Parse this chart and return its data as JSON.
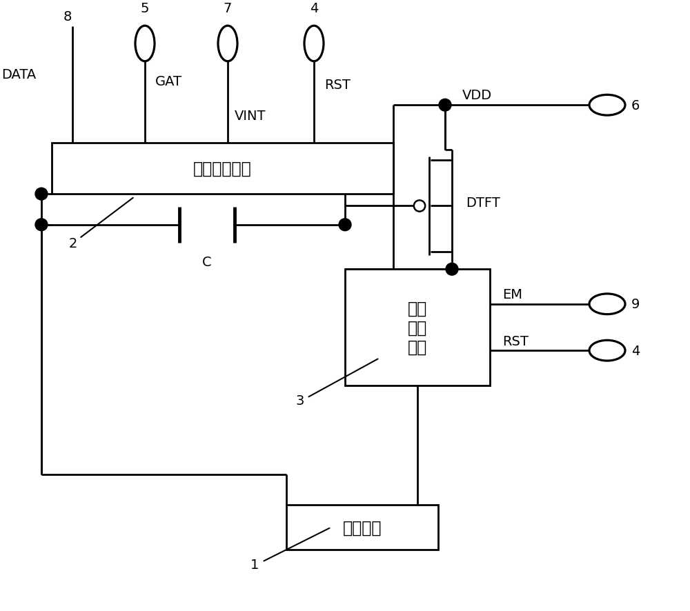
{
  "bg": "#ffffff",
  "lw": 2.0,
  "b1_label": "第一控制模块",
  "b2_label": "第二\n控制\n模块",
  "b3_label": "发光元件",
  "labels": {
    "DATA": "DATA",
    "GAT": "GAT",
    "VINT": "VINT",
    "RST": "RST",
    "VDD": "VDD",
    "EM": "EM",
    "DTFT": "DTFT",
    "C": "C",
    "n8": "8",
    "n5": "5",
    "n7": "7",
    "n4": "4",
    "n6": "6",
    "n9": "9",
    "n1": "1",
    "n2": "2",
    "n3": "3"
  },
  "fs": 14,
  "fs_cn": 17
}
